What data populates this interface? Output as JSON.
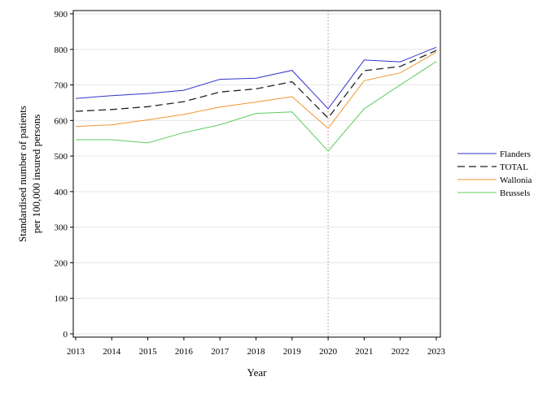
{
  "chart_data": {
    "type": "line",
    "title": "",
    "xlabel": "Year",
    "ylabel": [
      "Standardised number of patients",
      "per 100,000 insured persons"
    ],
    "x": [
      2013,
      2014,
      2015,
      2016,
      2017,
      2018,
      2019,
      2020,
      2021,
      2022,
      2023
    ],
    "xlim": [
      2013,
      2023
    ],
    "ylim": [
      0,
      900
    ],
    "yticks": [
      0,
      100,
      200,
      300,
      400,
      500,
      600,
      700,
      800,
      900
    ],
    "grid": "horizontal",
    "legend_position": "right",
    "reference_line": {
      "x": 2020,
      "style": "dotted",
      "color": "#c49aa5"
    },
    "series": [
      {
        "name": "Flanders",
        "color": "#3333cc",
        "dash": "solid",
        "values": [
          662,
          670,
          676,
          685,
          716,
          719,
          741,
          633,
          770,
          765,
          806
        ]
      },
      {
        "name": "TOTAL",
        "color": "#222222",
        "dash": "dashed",
        "values": [
          626,
          631,
          639,
          653,
          680,
          689,
          709,
          607,
          740,
          752,
          797
        ]
      },
      {
        "name": "Wallonia",
        "color": "#f0962e",
        "dash": "solid",
        "values": [
          583,
          588,
          602,
          617,
          638,
          652,
          667,
          578,
          712,
          734,
          792
        ]
      },
      {
        "name": "Brussels",
        "color": "#5ecc5e",
        "dash": "solid",
        "values": [
          546,
          546,
          537,
          566,
          588,
          620,
          624,
          514,
          633,
          700,
          766
        ]
      }
    ]
  }
}
